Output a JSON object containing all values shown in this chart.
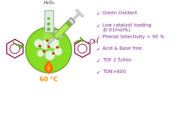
{
  "background_color": "#ffffff",
  "bullet_color": "#7B2D8B",
  "bullet_items": [
    "Green Oxidant",
    "Low catalyst loading\n(0.01mol%)",
    "Phenol Selectivity > 90 %",
    "Acid & Base free",
    "TOF 2.5/min",
    "TON>800"
  ],
  "h2o2_label": "H₂O₂",
  "temp_label": "60 °C",
  "temp_color": "#FF8C00",
  "flask_green_edge": "#6aaa30",
  "flask_fill": "#88DD22",
  "flask_fill_light": "#AAEE55",
  "arrow_green": "#5B9E2A",
  "syringe_green": "#5FA020",
  "syringe_body": "#77BB33",
  "benzene_color": "#8B1A4A",
  "phenol_color": "#8B1A4A",
  "oh_color": "#8B1A4A",
  "neck_color": "#ccddcc",
  "flame_outer": "#FF6600",
  "flame_inner": "#FFAA00"
}
